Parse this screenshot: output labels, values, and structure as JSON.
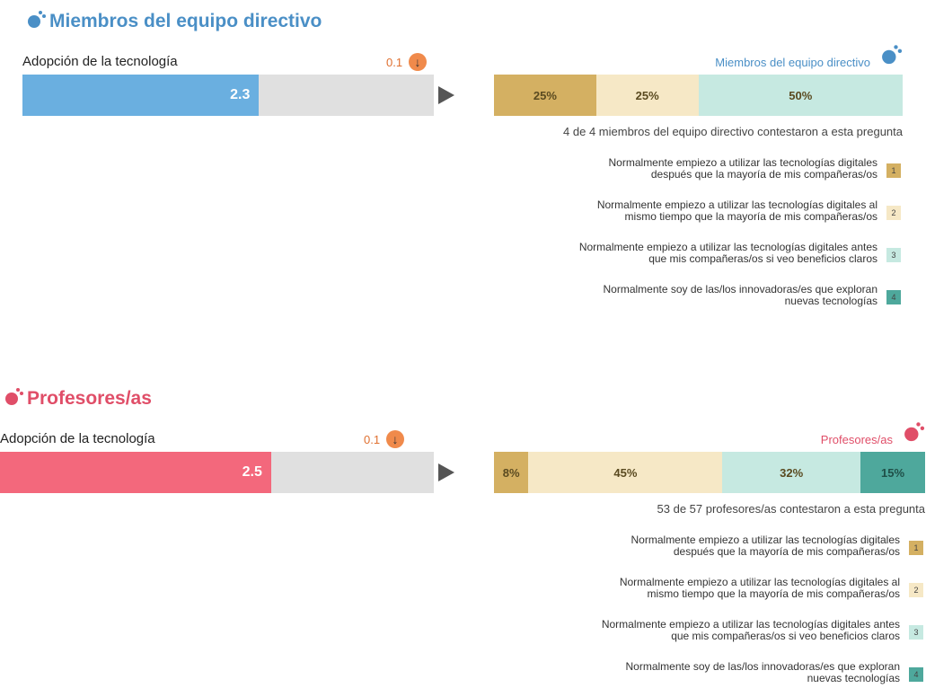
{
  "sections": [
    {
      "title": "Miembros del equipo directivo",
      "metric": "Adopción de la tecnología",
      "value": 2.3,
      "xlim": [
        0,
        4
      ],
      "delta": 0.1,
      "group": "Miembros del equipo directivo",
      "color": "#6aafe0",
      "title_color": "#4a8fc6",
      "colors": [
        "#d4b062",
        "#f6e8c6",
        "#c6e9e1",
        "#4ea89c"
      ],
      "distribution": {
        "values": [
          25,
          25,
          50
        ],
        "value_labels": [
          "25%",
          "25%",
          "50%"
        ]
      },
      "responses": "4 de 4 miembros del equipo directivo contestaron a esta pregunta",
      "legend": [
        {
          "key": "1",
          "lines": [
            "Normalmente empiezo a utilizar las tecnologías digitales",
            "después que la mayoría de mis compañeras/os"
          ]
        },
        {
          "key": "2",
          "lines": [
            "Normalmente empiezo a utilizar las tecnologías digitales al",
            "mismo tiempo que la mayoría de mis compañeras/os"
          ]
        },
        {
          "key": "3",
          "lines": [
            "Normalmente empiezo a utilizar las tecnologías digitales antes",
            "que mis compañeras/os si veo beneficios claros"
          ]
        },
        {
          "key": "4",
          "lines": [
            "Normalmente soy de las/los innovadoras/es que exploran",
            "nuevas tecnologías"
          ]
        }
      ]
    },
    {
      "title": "Profesores/as",
      "metric": "Adopción de la tecnología",
      "value": 2.5,
      "xlim": [
        0,
        4
      ],
      "delta": 0.1,
      "group": "Profesores/as",
      "color": "#f3687c",
      "title_color": "#e04e68",
      "colors": [
        "#d4b062",
        "#f6e8c6",
        "#c6e9e1",
        "#4ea89c"
      ],
      "distribution": {
        "values": [
          8,
          45,
          32,
          15
        ],
        "value_labels": [
          "8%",
          "45%",
          "32%",
          "15%"
        ]
      },
      "responses": "53 de 57 profesores/as contestaron a esta pregunta",
      "legend": [
        {
          "key": "1",
          "lines": [
            "Normalmente empiezo a utilizar las tecnologías digitales",
            "después que la mayoría de mis compañeras/os"
          ]
        },
        {
          "key": "2",
          "lines": [
            "Normalmente empiezo a utilizar las tecnologías digitales al",
            "mismo tiempo que la mayoría de mis compañeras/os"
          ]
        },
        {
          "key": "3",
          "lines": [
            "Normalmente empiezo a utilizar las tecnologías digitales antes",
            "que mis compañeras/os si veo beneficios claros"
          ]
        },
        {
          "key": "4",
          "lines": [
            "Normalmente soy de las/los innovadoras/es que exploran",
            "nuevas tecnologías"
          ]
        }
      ]
    }
  ]
}
